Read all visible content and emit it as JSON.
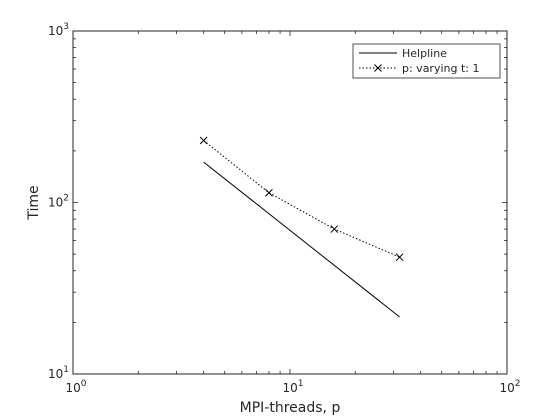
{
  "chart_data": {
    "type": "line",
    "xscale": "log",
    "yscale": "log",
    "xlim": [
      1,
      100
    ],
    "ylim": [
      10,
      1000
    ],
    "xlabel": "MPI-threads, p",
    "ylabel": "Time",
    "xticks": [
      1,
      10,
      100
    ],
    "yticks": [
      10,
      100,
      1000
    ],
    "xtick_labels": [
      {
        "base": "10",
        "exp": "0"
      },
      {
        "base": "10",
        "exp": "1"
      },
      {
        "base": "10",
        "exp": "2"
      }
    ],
    "ytick_labels": [
      {
        "base": "10",
        "exp": "1"
      },
      {
        "base": "10",
        "exp": "2"
      },
      {
        "base": "10",
        "exp": "3"
      }
    ],
    "grid": false,
    "legend_position": "top-right",
    "series": [
      {
        "name": "Helpline",
        "style": "solid",
        "marker": "none",
        "color": "#000000",
        "x": [
          4,
          32
        ],
        "y": [
          172,
          21.5
        ]
      },
      {
        "name": "p: varying t: 1",
        "style": "dotted",
        "marker": "x",
        "color": "#000000",
        "x": [
          4,
          8,
          16,
          32
        ],
        "y": [
          230,
          114,
          70,
          48
        ]
      }
    ]
  }
}
